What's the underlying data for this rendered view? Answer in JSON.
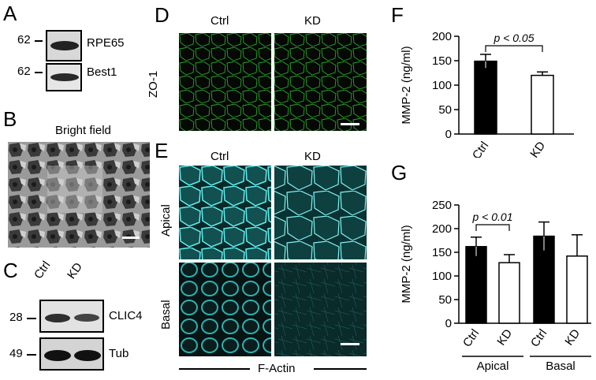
{
  "panels": {
    "A": {
      "letter": "A",
      "mw1": "62",
      "mw2": "62",
      "label1": "RPE65",
      "label2": "Best1"
    },
    "B": {
      "letter": "B",
      "title": "Bright field"
    },
    "C": {
      "letter": "C",
      "col1": "Ctrl",
      "col2": "KD",
      "mw1": "28",
      "mw2": "49",
      "label1": "CLIC4",
      "label2": "Tub"
    },
    "D": {
      "letter": "D",
      "col1": "Ctrl",
      "col2": "KD",
      "row": "ZO-1",
      "stain_color": "#2db82d"
    },
    "E": {
      "letter": "E",
      "col1": "Ctrl",
      "col2": "KD",
      "row1": "Apical",
      "row2": "Basal",
      "bottom": "F-Actin",
      "stain_color": "#3fd6d6"
    },
    "F": {
      "letter": "F"
    },
    "G": {
      "letter": "G"
    }
  },
  "chart_data": [
    {
      "type": "bar",
      "categories": [
        "Ctrl",
        "KD"
      ],
      "values": [
        149,
        120
      ],
      "errors": [
        14,
        7
      ],
      "fills": [
        "#000000",
        "#ffffff"
      ],
      "ylabel": "MMP-2 (ng/ml)",
      "ylim": [
        0,
        200
      ],
      "yticks": [
        "0",
        "50",
        "100",
        "150",
        "200"
      ],
      "annotation": "p < 0.05"
    },
    {
      "type": "bar",
      "categories": [
        "Ctrl",
        "KD",
        "Ctrl",
        "KD"
      ],
      "groups": [
        "Apical",
        "Basal"
      ],
      "values": [
        162,
        128,
        184,
        142
      ],
      "errors": [
        20,
        17,
        30,
        45
      ],
      "fills": [
        "#000000",
        "#ffffff",
        "#000000",
        "#ffffff"
      ],
      "ylabel": "MMP-2 (ng/ml)",
      "ylim": [
        0,
        250
      ],
      "yticks": [
        "0",
        "50",
        "100",
        "150",
        "200",
        "250"
      ],
      "annotation": "p < 0.01"
    }
  ]
}
